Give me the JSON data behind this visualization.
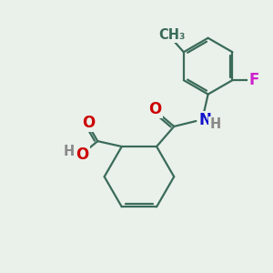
{
  "background_color": "#eaf0ea",
  "bond_color": "#3a6b5a",
  "bond_width": 1.6,
  "atom_colors": {
    "O": "#cc0000",
    "N": "#1111cc",
    "F": "#cc22cc",
    "H": "#888888",
    "C": "#3a6b5a"
  },
  "font_size": 12,
  "font_size_small": 10.5
}
